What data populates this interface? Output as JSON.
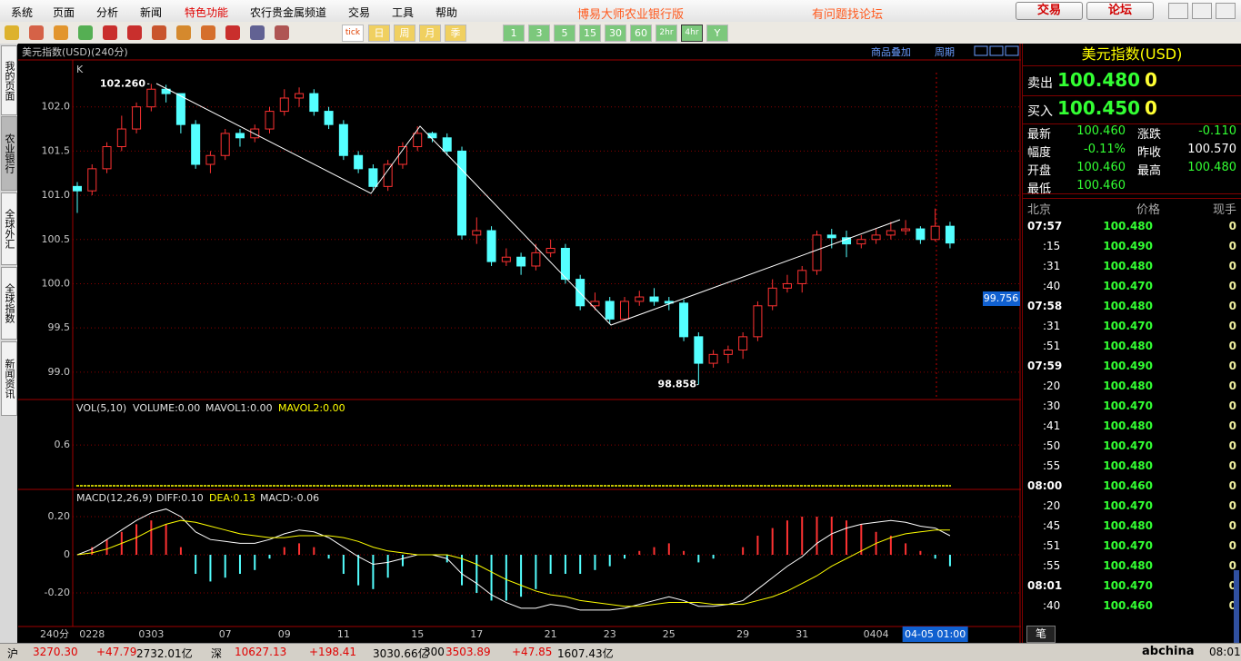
{
  "menu": {
    "items": [
      "系统",
      "页面",
      "分析",
      "新闻",
      "特色功能",
      "农行贵金属频道",
      "交易",
      "工具",
      "帮助"
    ],
    "app_title": "博易大师农业银行版",
    "forum_hint": "有问题找论坛",
    "buttons": [
      "交易",
      "论坛"
    ]
  },
  "toolbar": {
    "buttons": [
      "tick",
      "日",
      "周",
      "月",
      "季",
      "1",
      "3",
      "5",
      "15",
      "30",
      "60",
      "2hr",
      "4hr",
      "Y"
    ]
  },
  "side_tabs": [
    "我的页面",
    "农业银行",
    "全球外汇",
    "全球指数",
    "新闻资讯"
  ],
  "chart_data": {
    "type": "candlestick",
    "title": "美元指数(USD)(240分)",
    "panel_label": "K",
    "period_label": "240分",
    "links": [
      "商品叠加",
      "周期"
    ],
    "categories": [
      null,
      "0228",
      null,
      null,
      null,
      "0303",
      null,
      null,
      null,
      null,
      "07",
      null,
      null,
      null,
      "09",
      null,
      null,
      null,
      "11",
      null,
      null,
      null,
      null,
      "15",
      null,
      null,
      null,
      "17",
      null,
      null,
      null,
      null,
      "21",
      null,
      null,
      null,
      "23",
      null,
      null,
      null,
      "25",
      null,
      null,
      null,
      null,
      "29",
      null,
      null,
      null,
      "31",
      null,
      null,
      null,
      null,
      "0404",
      null,
      null,
      null,
      "04-05 01:00",
      null
    ],
    "ohlc": [
      [
        101.1,
        101.15,
        100.8,
        101.05
      ],
      [
        101.05,
        101.35,
        101.0,
        101.3
      ],
      [
        101.3,
        101.6,
        101.25,
        101.55
      ],
      [
        101.55,
        101.9,
        101.5,
        101.75
      ],
      [
        101.75,
        102.05,
        101.7,
        102.0
      ],
      [
        102.0,
        102.26,
        101.95,
        102.2
      ],
      [
        102.2,
        102.25,
        102.05,
        102.15
      ],
      [
        102.15,
        102.15,
        101.7,
        101.8
      ],
      [
        101.8,
        101.85,
        101.3,
        101.35
      ],
      [
        101.35,
        101.5,
        101.25,
        101.45
      ],
      [
        101.45,
        101.75,
        101.4,
        101.7
      ],
      [
        101.7,
        101.75,
        101.55,
        101.65
      ],
      [
        101.65,
        101.8,
        101.6,
        101.75
      ],
      [
        101.75,
        102.0,
        101.7,
        101.95
      ],
      [
        101.95,
        102.2,
        101.9,
        102.1
      ],
      [
        102.1,
        102.22,
        102.0,
        102.15
      ],
      [
        102.15,
        102.2,
        101.9,
        101.95
      ],
      [
        101.95,
        102.0,
        101.75,
        101.8
      ],
      [
        101.8,
        101.85,
        101.4,
        101.45
      ],
      [
        101.45,
        101.5,
        101.25,
        101.3
      ],
      [
        101.3,
        101.35,
        101.05,
        101.1
      ],
      [
        101.1,
        101.4,
        101.05,
        101.35
      ],
      [
        101.35,
        101.6,
        101.3,
        101.55
      ],
      [
        101.55,
        101.78,
        101.5,
        101.7
      ],
      [
        101.7,
        101.72,
        101.6,
        101.65
      ],
      [
        101.65,
        101.7,
        101.45,
        101.5
      ],
      [
        101.5,
        101.55,
        100.5,
        100.55
      ],
      [
        100.55,
        100.75,
        100.45,
        100.6
      ],
      [
        100.6,
        100.65,
        100.2,
        100.25
      ],
      [
        100.25,
        100.4,
        100.2,
        100.3
      ],
      [
        100.3,
        100.35,
        100.1,
        100.2
      ],
      [
        100.2,
        100.45,
        100.15,
        100.35
      ],
      [
        100.35,
        100.5,
        100.3,
        100.4
      ],
      [
        100.4,
        100.45,
        100.0,
        100.05
      ],
      [
        100.05,
        100.1,
        99.7,
        99.75
      ],
      [
        99.75,
        99.9,
        99.7,
        99.8
      ],
      [
        99.8,
        99.85,
        99.55,
        99.6
      ],
      [
        99.6,
        99.85,
        99.58,
        99.8
      ],
      [
        99.8,
        99.92,
        99.75,
        99.85
      ],
      [
        99.85,
        99.95,
        99.75,
        99.8
      ],
      [
        99.8,
        99.85,
        99.7,
        99.78
      ],
      [
        99.78,
        99.82,
        99.35,
        99.4
      ],
      [
        99.4,
        99.45,
        98.858,
        99.1
      ],
      [
        99.1,
        99.25,
        99.05,
        99.2
      ],
      [
        99.2,
        99.3,
        99.1,
        99.25
      ],
      [
        99.25,
        99.45,
        99.15,
        99.4
      ],
      [
        99.4,
        99.8,
        99.35,
        99.75
      ],
      [
        99.75,
        100.05,
        99.7,
        99.95
      ],
      [
        99.95,
        100.1,
        99.9,
        100.0
      ],
      [
        100.0,
        100.2,
        99.9,
        100.15
      ],
      [
        100.15,
        100.6,
        100.1,
        100.55
      ],
      [
        100.55,
        100.62,
        100.4,
        100.52
      ],
      [
        100.52,
        100.6,
        100.3,
        100.45
      ],
      [
        100.45,
        100.55,
        100.4,
        100.5
      ],
      [
        100.5,
        100.62,
        100.45,
        100.55
      ],
      [
        100.55,
        100.7,
        100.5,
        100.6
      ],
      [
        100.6,
        100.72,
        100.55,
        100.62
      ],
      [
        100.62,
        100.65,
        100.45,
        100.5
      ],
      [
        100.5,
        100.85,
        100.48,
        100.65
      ],
      [
        100.65,
        100.7,
        100.4,
        100.46
      ]
    ],
    "up_color": "#ff3232",
    "down_color": "#54ffff",
    "ylim": [
      98.69,
      102.49
    ],
    "yticks": [
      {
        "value": 99,
        "label": "99.0"
      },
      {
        "value": 99.5,
        "label": "99.5"
      },
      {
        "value": 100,
        "label": "100.0"
      },
      {
        "value": 100.5,
        "label": "100.5"
      },
      {
        "value": 101,
        "label": "101.0"
      },
      {
        "value": 101.5,
        "label": "101.5"
      },
      {
        "value": 102,
        "label": "102.0"
      }
    ],
    "grid": true,
    "annotations": [
      "102.260",
      "98.858"
    ],
    "crosshair_label": "99.756",
    "volume": {
      "legend": [
        "VOL(5,10)",
        "VOLUME:0.00",
        "MAVOL1:0.00",
        "MAVOL2:0.00"
      ],
      "ylim": [
        0,
        1.23
      ],
      "yticks": [
        0.6
      ]
    },
    "macd": {
      "legend": [
        "MACD(12,26,9)",
        "DIFF:0.10",
        "DEA:0.13",
        "MACD:-0.06"
      ],
      "ylim": [
        -0.376,
        0.338
      ],
      "yticks": [
        {
          "value": 0.2,
          "label": "0.20"
        },
        0,
        {
          "value": -0.2,
          "label": "-0.20"
        }
      ],
      "series": [
        {
          "name": "DIFF",
          "color": "#ffffff",
          "values": [
            0.0,
            0.03,
            0.08,
            0.13,
            0.18,
            0.22,
            0.24,
            0.2,
            0.12,
            0.08,
            0.07,
            0.06,
            0.06,
            0.08,
            0.11,
            0.13,
            0.12,
            0.09,
            0.04,
            -0.01,
            -0.05,
            -0.04,
            -0.02,
            0.0,
            0.0,
            -0.02,
            -0.1,
            -0.15,
            -0.21,
            -0.25,
            -0.28,
            -0.28,
            -0.26,
            -0.27,
            -0.29,
            -0.29,
            -0.29,
            -0.28,
            -0.26,
            -0.24,
            -0.22,
            -0.24,
            -0.27,
            -0.27,
            -0.26,
            -0.24,
            -0.18,
            -0.12,
            -0.06,
            -0.01,
            0.06,
            0.11,
            0.14,
            0.16,
            0.17,
            0.18,
            0.17,
            0.15,
            0.14,
            0.1
          ]
        },
        {
          "name": "DEA",
          "color": "#ffff00",
          "values": [
            0.0,
            0.01,
            0.03,
            0.06,
            0.09,
            0.13,
            0.16,
            0.18,
            0.17,
            0.15,
            0.13,
            0.11,
            0.1,
            0.09,
            0.09,
            0.1,
            0.1,
            0.1,
            0.09,
            0.07,
            0.04,
            0.02,
            0.01,
            0.0,
            0.0,
            0.0,
            -0.02,
            -0.05,
            -0.09,
            -0.13,
            -0.16,
            -0.19,
            -0.21,
            -0.22,
            -0.24,
            -0.25,
            -0.26,
            -0.27,
            -0.27,
            -0.26,
            -0.25,
            -0.25,
            -0.25,
            -0.26,
            -0.26,
            -0.26,
            -0.24,
            -0.22,
            -0.19,
            -0.15,
            -0.11,
            -0.06,
            -0.02,
            0.02,
            0.06,
            0.09,
            0.11,
            0.12,
            0.13,
            0.13
          ]
        }
      ],
      "histogram": [
        0,
        0.04,
        0.08,
        0.12,
        0.16,
        0.18,
        0.16,
        0.04,
        -0.1,
        -0.14,
        -0.12,
        -0.1,
        -0.08,
        -0.02,
        0.04,
        0.06,
        0.04,
        -0.02,
        -0.1,
        -0.16,
        -0.18,
        -0.12,
        -0.06,
        0.0,
        0.0,
        -0.04,
        -0.16,
        -0.2,
        -0.24,
        -0.24,
        -0.22,
        -0.18,
        -0.1,
        -0.1,
        -0.1,
        -0.08,
        -0.06,
        -0.02,
        0.02,
        0.04,
        0.06,
        0.02,
        -0.04,
        -0.02,
        0.0,
        0.04,
        0.1,
        0.14,
        0.18,
        0.2,
        0.2,
        0.2,
        0.18,
        0.16,
        0.12,
        0.1,
        0.06,
        0.02,
        -0.02,
        -0.06
      ]
    }
  },
  "quote_panel": {
    "title": "美元指数(USD)",
    "sell": {
      "label": "卖出",
      "price": "100.480",
      "qty": "0"
    },
    "buy": {
      "label": "买入",
      "price": "100.450",
      "qty": "0"
    },
    "stats": [
      [
        "最新",
        "100.460",
        "涨跌",
        "-0.110"
      ],
      [
        "幅度",
        "-0.11%",
        "昨收",
        "100.570"
      ],
      [
        "开盘",
        "100.460",
        "最高",
        "100.480"
      ],
      [
        "最低",
        "100.460"
      ]
    ],
    "ticks_header": [
      "北京",
      "价格",
      "现手"
    ],
    "ticks": [
      [
        "07:57",
        "100.480",
        "0"
      ],
      [
        ":15",
        "100.490",
        "0"
      ],
      [
        ":31",
        "100.480",
        "0"
      ],
      [
        ":40",
        "100.470",
        "0"
      ],
      [
        "07:58",
        "100.480",
        "0"
      ],
      [
        ":31",
        "100.470",
        "0"
      ],
      [
        ":51",
        "100.480",
        "0"
      ],
      [
        "07:59",
        "100.490",
        "0"
      ],
      [
        ":20",
        "100.480",
        "0"
      ],
      [
        ":30",
        "100.470",
        "0"
      ],
      [
        ":41",
        "100.480",
        "0"
      ],
      [
        ":50",
        "100.470",
        "0"
      ],
      [
        ":55",
        "100.480",
        "0"
      ],
      [
        "08:00",
        "100.460",
        "0"
      ],
      [
        ":20",
        "100.470",
        "0"
      ],
      [
        ":45",
        "100.480",
        "0"
      ],
      [
        ":51",
        "100.470",
        "0"
      ],
      [
        ":55",
        "100.480",
        "0"
      ],
      [
        "08:01",
        "100.470",
        "0"
      ],
      [
        ":40",
        "100.460",
        "0"
      ]
    ],
    "tab": "笔"
  },
  "status_bar": {
    "items": [
      "沪",
      "3270.30",
      "+47.79",
      "2732.01亿",
      "深",
      "10627.13",
      "+198.41",
      "3030.66亿",
      "300",
      "3503.89",
      "+47.85",
      "1607.43亿"
    ],
    "brand": "abchina",
    "time": "08:01"
  }
}
